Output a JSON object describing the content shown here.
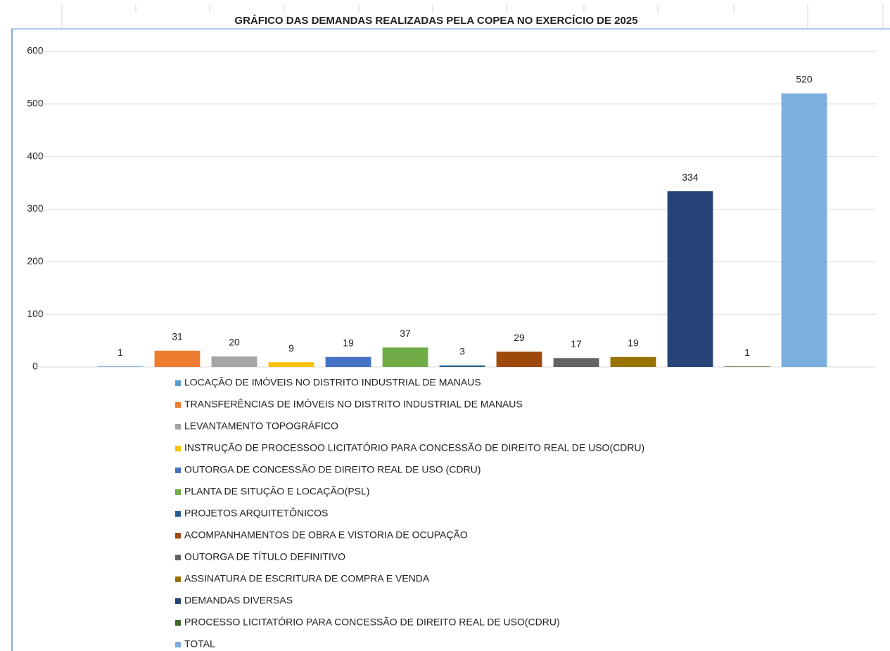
{
  "chart_data": {
    "type": "bar",
    "title": "GRÁFICO DAS DEMANDAS REALIZADAS PELA COPEA NO EXERCÍCIO DE 2025",
    "ylim": [
      0,
      600
    ],
    "yticks": [
      0,
      100,
      200,
      300,
      400,
      500,
      600
    ],
    "grid": true,
    "legend": "bottom",
    "series": [
      {
        "name": "LOCAÇÃO DE IMÓVEIS NO DISTRITO INDUSTRIAL DE MANAUS",
        "color": "#5b9bd5",
        "values": [
          1
        ]
      },
      {
        "name": "TRANSFERÊNCIAS DE IMÓVEIS NO DISTRITO INDUSTRIAL DE MANAUS",
        "color": "#ed7d31",
        "values": [
          31
        ]
      },
      {
        "name": "LEVANTAMENTO TOPOGRÁFICO",
        "color": "#a5a5a5",
        "values": [
          20
        ]
      },
      {
        "name": "INSTRUÇÃO DE PROCESSOO LICITATÓRIO PARA CONCESSÃO DE DIREITO REAL DE USO(CDRU)",
        "color": "#ffc000",
        "values": [
          9
        ]
      },
      {
        "name": "OUTORGA DE CONCESSÃO DE DIREITO REAL DE USO (CDRU)",
        "color": "#4472c4",
        "values": [
          19
        ]
      },
      {
        "name": "PLANTA DE SITUÇÃO E LOCAÇÃO(PSL)",
        "color": "#70ad47",
        "values": [
          37
        ]
      },
      {
        "name": "PROJETOS ARQUITETÔNICOS",
        "color": "#255e91",
        "values": [
          3
        ]
      },
      {
        "name": "ACOMPANHAMENTOS DE OBRA E VISTORIA DE OCUPAÇÃO",
        "color": "#9e480e",
        "values": [
          29
        ]
      },
      {
        "name": "OUTORGA DE TÍTULO DEFINITIVO",
        "color": "#636363",
        "values": [
          17
        ]
      },
      {
        "name": "ASSINATURA DE ESCRITURA DE COMPRA E VENDA",
        "color": "#997300",
        "values": [
          19
        ]
      },
      {
        "name": "DEMANDAS DIVERSAS",
        "color": "#264478",
        "values": [
          334
        ]
      },
      {
        "name": "PROCESSO LICITATÓRIO PARA CONCESSÃO DE DIREITO REAL DE USO(CDRU)",
        "color": "#43682b",
        "values": [
          1
        ]
      },
      {
        "name": "TOTAL",
        "color": "#7cafdd",
        "values": [
          520
        ]
      }
    ]
  }
}
